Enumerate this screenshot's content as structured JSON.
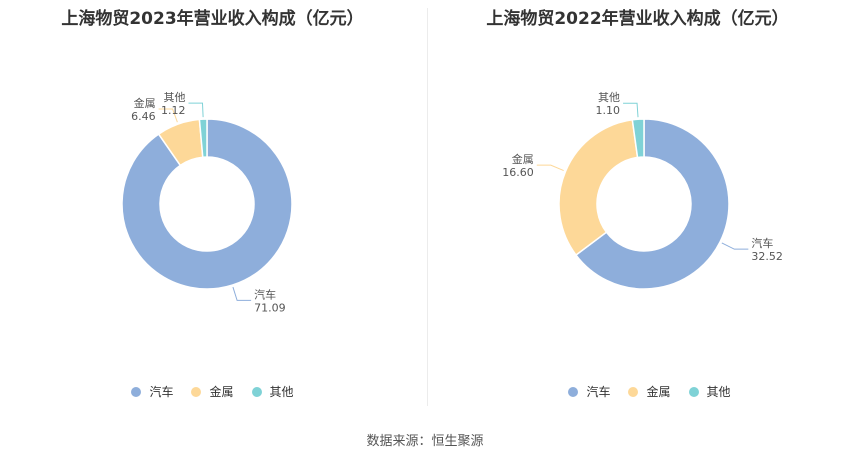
{
  "colors": {
    "汽车": "#8eaedb",
    "金属": "#fdd898",
    "其他": "#7fd2d6"
  },
  "source": "数据来源：恒生聚源",
  "chart_data": [
    {
      "type": "pie",
      "title": "上海物贸2023年营业收入构成（亿元）",
      "categories": [
        "汽车",
        "金属",
        "其他"
      ],
      "values": [
        71.09,
        6.46,
        1.12
      ],
      "value_labels": [
        "71.09",
        "6.46",
        "1.12"
      ],
      "legend": "bottom",
      "donut": true
    },
    {
      "type": "pie",
      "title": "上海物贸2022年营业收入构成（亿元）",
      "categories": [
        "汽车",
        "金属",
        "其他"
      ],
      "values": [
        32.52,
        16.6,
        1.1
      ],
      "value_labels": [
        "32.52",
        "16.60",
        "1.10"
      ],
      "legend": "bottom",
      "donut": true
    }
  ]
}
